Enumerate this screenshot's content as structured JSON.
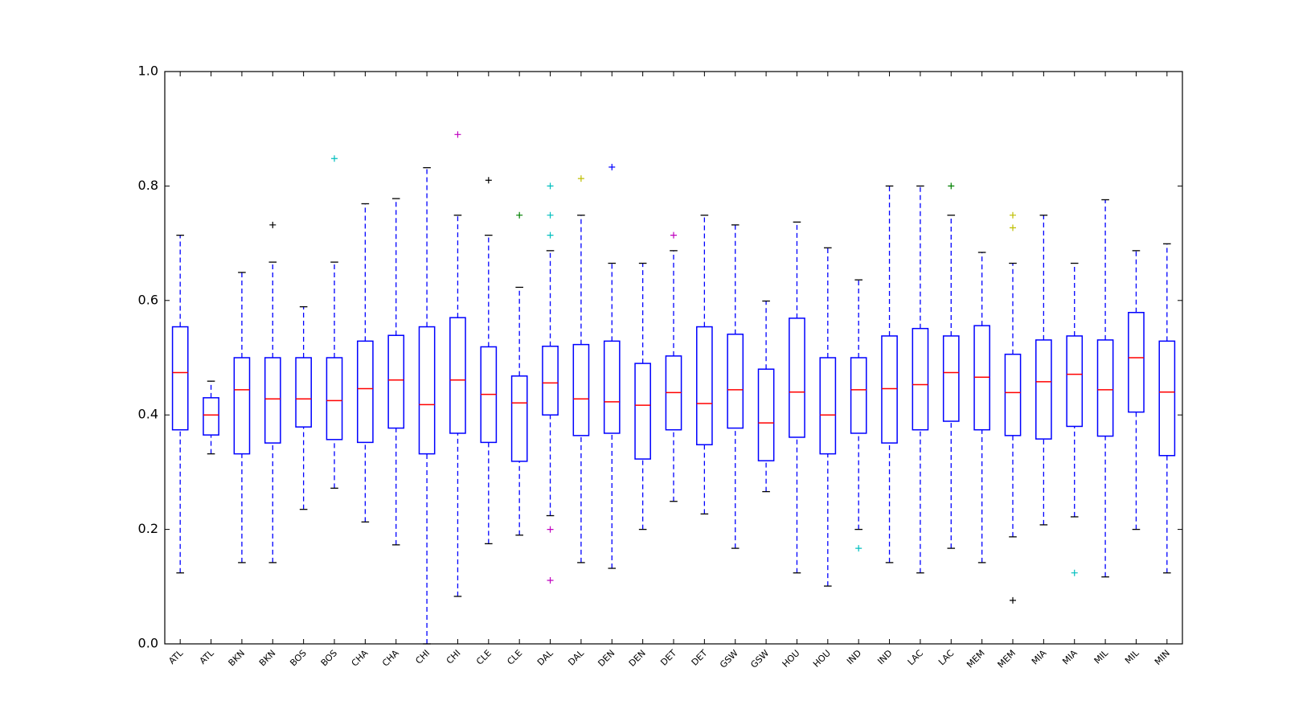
{
  "chart_data": {
    "type": "box",
    "categories": [
      "ATL",
      "ATL",
      "BKN",
      "BKN",
      "BOS",
      "BOS",
      "CHA",
      "CHA",
      "CHI",
      "CHI",
      "CLE",
      "CLE",
      "DAL",
      "DAL",
      "DEN",
      "DEN",
      "DET",
      "DET",
      "GSW",
      "GSW",
      "HOU",
      "HOU",
      "IND",
      "IND",
      "LAC",
      "LAC",
      "MEM",
      "MEM",
      "MIA",
      "MIA",
      "MIL",
      "MIL",
      "MIN"
    ],
    "boxes": [
      {
        "whislo": 0.124,
        "q1": 0.374,
        "med": 0.474,
        "q3": 0.554,
        "whishi": 0.714,
        "fliers": [],
        "flier_colors": []
      },
      {
        "whislo": 0.332,
        "q1": 0.365,
        "med": 0.4,
        "q3": 0.43,
        "whishi": 0.459,
        "fliers": [],
        "flier_colors": []
      },
      {
        "whislo": 0.142,
        "q1": 0.332,
        "med": 0.444,
        "q3": 0.5,
        "whishi": 0.649,
        "fliers": [],
        "flier_colors": []
      },
      {
        "whislo": 0.142,
        "q1": 0.351,
        "med": 0.428,
        "q3": 0.5,
        "whishi": 0.667,
        "fliers": [
          0.732
        ],
        "flier_colors": [
          "#000000"
        ]
      },
      {
        "whislo": 0.235,
        "q1": 0.379,
        "med": 0.428,
        "q3": 0.5,
        "whishi": 0.589,
        "fliers": [],
        "flier_colors": []
      },
      {
        "whislo": 0.272,
        "q1": 0.357,
        "med": 0.425,
        "q3": 0.5,
        "whishi": 0.667,
        "fliers": [
          0.848
        ],
        "flier_colors": [
          "#00bfbf"
        ]
      },
      {
        "whislo": 0.213,
        "q1": 0.352,
        "med": 0.446,
        "q3": 0.529,
        "whishi": 0.769,
        "fliers": [],
        "flier_colors": []
      },
      {
        "whislo": 0.173,
        "q1": 0.377,
        "med": 0.461,
        "q3": 0.539,
        "whishi": 0.778,
        "fliers": [],
        "flier_colors": []
      },
      {
        "whislo": 0.0,
        "q1": 0.332,
        "med": 0.418,
        "q3": 0.554,
        "whishi": 0.832,
        "fliers": [],
        "flier_colors": []
      },
      {
        "whislo": 0.083,
        "q1": 0.368,
        "med": 0.461,
        "q3": 0.57,
        "whishi": 0.749,
        "fliers": [
          0.89
        ],
        "flier_colors": [
          "#bf00bf"
        ]
      },
      {
        "whislo": 0.175,
        "q1": 0.352,
        "med": 0.436,
        "q3": 0.519,
        "whishi": 0.714,
        "fliers": [
          0.81
        ],
        "flier_colors": [
          "#000000"
        ]
      },
      {
        "whislo": 0.19,
        "q1": 0.319,
        "med": 0.421,
        "q3": 0.468,
        "whishi": 0.623,
        "fliers": [
          0.749
        ],
        "flier_colors": [
          "#008000"
        ]
      },
      {
        "whislo": 0.224,
        "q1": 0.4,
        "med": 0.456,
        "q3": 0.52,
        "whishi": 0.687,
        "fliers": [
          0.8,
          0.749,
          0.714,
          0.2,
          0.111
        ],
        "flier_colors": [
          "#00bfbf",
          "#00bfbf",
          "#00bfbf",
          "#bf00bf",
          "#bf00bf"
        ]
      },
      {
        "whislo": 0.142,
        "q1": 0.364,
        "med": 0.428,
        "q3": 0.523,
        "whishi": 0.749,
        "fliers": [
          0.813
        ],
        "flier_colors": [
          "#bfbf00"
        ]
      },
      {
        "whislo": 0.132,
        "q1": 0.368,
        "med": 0.423,
        "q3": 0.529,
        "whishi": 0.665,
        "fliers": [
          0.833
        ],
        "flier_colors": [
          "#0000ff"
        ]
      },
      {
        "whislo": 0.2,
        "q1": 0.323,
        "med": 0.417,
        "q3": 0.49,
        "whishi": 0.665,
        "fliers": [],
        "flier_colors": []
      },
      {
        "whislo": 0.249,
        "q1": 0.374,
        "med": 0.439,
        "q3": 0.503,
        "whishi": 0.687,
        "fliers": [
          0.714
        ],
        "flier_colors": [
          "#bf00bf"
        ]
      },
      {
        "whislo": 0.227,
        "q1": 0.348,
        "med": 0.42,
        "q3": 0.554,
        "whishi": 0.749,
        "fliers": [],
        "flier_colors": []
      },
      {
        "whislo": 0.167,
        "q1": 0.377,
        "med": 0.444,
        "q3": 0.541,
        "whishi": 0.732,
        "fliers": [],
        "flier_colors": []
      },
      {
        "whislo": 0.266,
        "q1": 0.32,
        "med": 0.386,
        "q3": 0.48,
        "whishi": 0.599,
        "fliers": [],
        "flier_colors": []
      },
      {
        "whislo": 0.124,
        "q1": 0.361,
        "med": 0.44,
        "q3": 0.569,
        "whishi": 0.737,
        "fliers": [],
        "flier_colors": []
      },
      {
        "whislo": 0.101,
        "q1": 0.332,
        "med": 0.4,
        "q3": 0.5,
        "whishi": 0.692,
        "fliers": [],
        "flier_colors": []
      },
      {
        "whislo": 0.2,
        "q1": 0.368,
        "med": 0.444,
        "q3": 0.5,
        "whishi": 0.636,
        "fliers": [
          0.167
        ],
        "flier_colors": [
          "#00bfbf"
        ]
      },
      {
        "whislo": 0.142,
        "q1": 0.351,
        "med": 0.446,
        "q3": 0.538,
        "whishi": 0.8,
        "fliers": [],
        "flier_colors": []
      },
      {
        "whislo": 0.124,
        "q1": 0.374,
        "med": 0.453,
        "q3": 0.551,
        "whishi": 0.8,
        "fliers": [],
        "flier_colors": []
      },
      {
        "whislo": 0.167,
        "q1": 0.389,
        "med": 0.474,
        "q3": 0.538,
        "whishi": 0.749,
        "fliers": [
          0.8
        ],
        "flier_colors": [
          "#008000"
        ]
      },
      {
        "whislo": 0.142,
        "q1": 0.374,
        "med": 0.466,
        "q3": 0.556,
        "whishi": 0.684,
        "fliers": [],
        "flier_colors": []
      },
      {
        "whislo": 0.187,
        "q1": 0.364,
        "med": 0.439,
        "q3": 0.506,
        "whishi": 0.665,
        "fliers": [
          0.749,
          0.727,
          0.076
        ],
        "flier_colors": [
          "#bfbf00",
          "#bfbf00",
          "#000000"
        ]
      },
      {
        "whislo": 0.208,
        "q1": 0.358,
        "med": 0.458,
        "q3": 0.531,
        "whishi": 0.749,
        "fliers": [],
        "flier_colors": []
      },
      {
        "whislo": 0.222,
        "q1": 0.38,
        "med": 0.471,
        "q3": 0.538,
        "whishi": 0.665,
        "fliers": [
          0.124
        ],
        "flier_colors": [
          "#00bfbf"
        ]
      },
      {
        "whislo": 0.117,
        "q1": 0.363,
        "med": 0.444,
        "q3": 0.531,
        "whishi": 0.776,
        "fliers": [],
        "flier_colors": []
      },
      {
        "whislo": 0.2,
        "q1": 0.405,
        "med": 0.5,
        "q3": 0.579,
        "whishi": 0.687,
        "fliers": [],
        "flier_colors": []
      },
      {
        "whislo": 0.124,
        "q1": 0.329,
        "med": 0.44,
        "q3": 0.529,
        "whishi": 0.699,
        "fliers": [],
        "flier_colors": []
      }
    ],
    "box_color": "#0000ff",
    "median_color": "#ff0000",
    "cap_color": "#000000",
    "ylim": [
      0,
      1
    ],
    "yticks": [
      {
        "value": 0,
        "label": "0.0"
      },
      0.2,
      0.4,
      0.6,
      0.8,
      {
        "value": 1,
        "label": "1.0"
      }
    ]
  }
}
